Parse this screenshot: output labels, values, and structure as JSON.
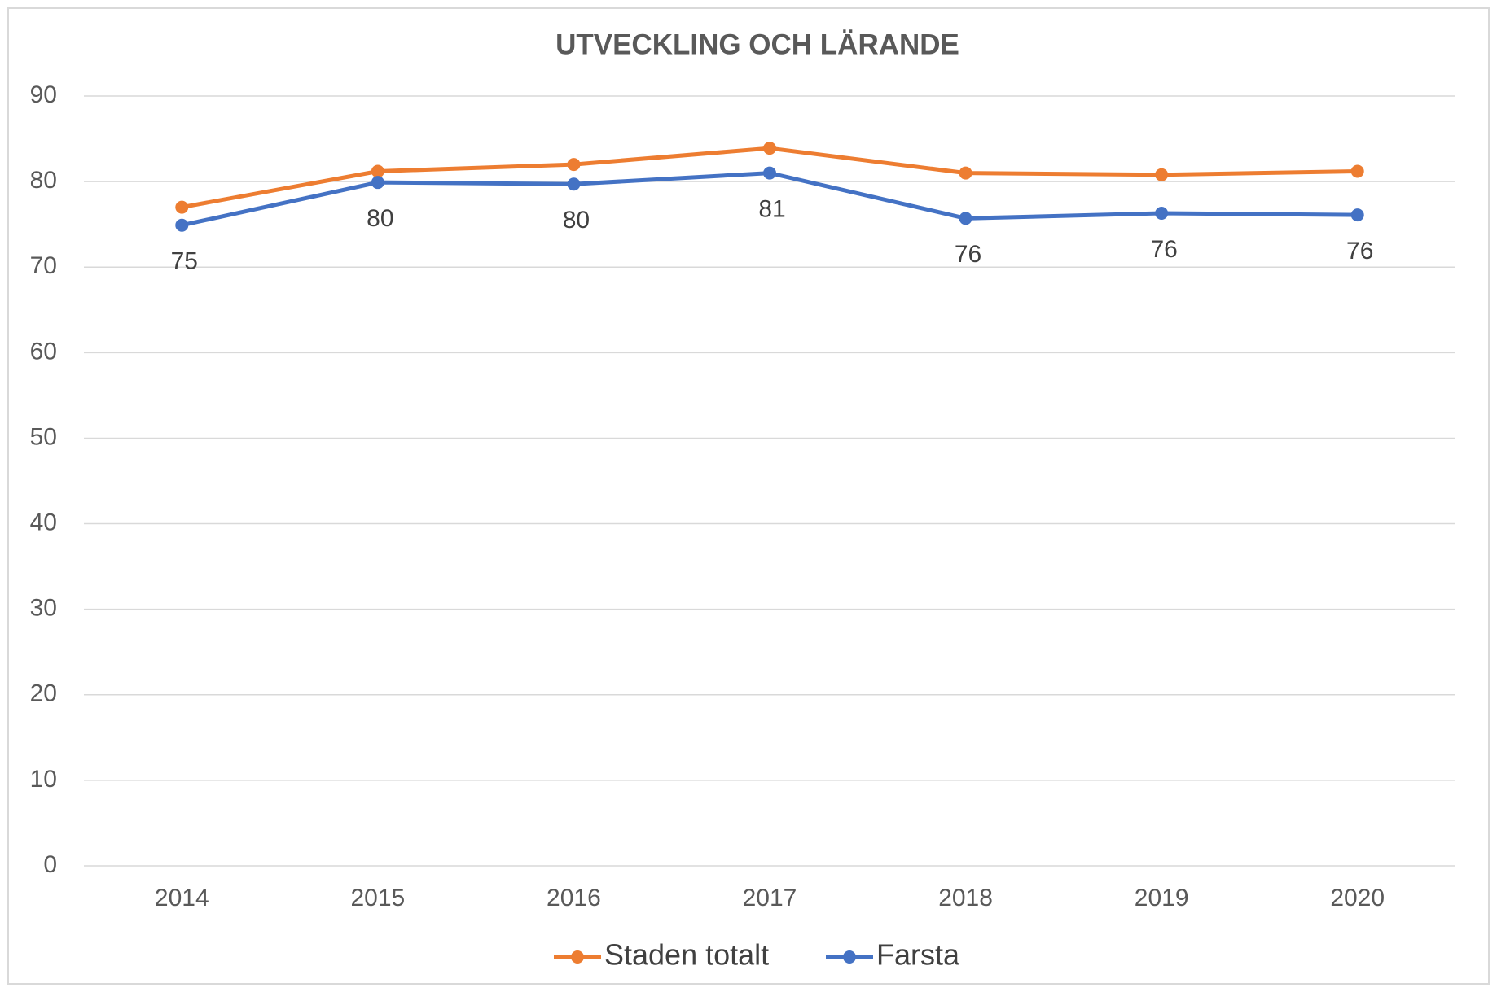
{
  "chart_data": {
    "type": "line",
    "title": "UTVECKLING OCH LÄRANDE",
    "categories": [
      "2014",
      "2015",
      "2016",
      "2017",
      "2018",
      "2019",
      "2020"
    ],
    "series": [
      {
        "name": "Staden totalt",
        "color": "#ed7d31",
        "values": [
          77,
          81.2,
          82,
          83.9,
          81,
          80.8,
          81.2
        ]
      },
      {
        "name": "Farsta",
        "color": "#4472c4",
        "values": [
          74.9,
          79.9,
          79.7,
          81,
          75.7,
          76.3,
          76.1
        ],
        "value_labels": [
          "75",
          "80",
          "80",
          "81",
          "76",
          "76",
          "76"
        ]
      }
    ],
    "ylim": [
      0,
      90
    ],
    "yticks": [
      0,
      10,
      20,
      30,
      40,
      50,
      60,
      70,
      80,
      90
    ],
    "grid": true,
    "legend": "bottom"
  }
}
